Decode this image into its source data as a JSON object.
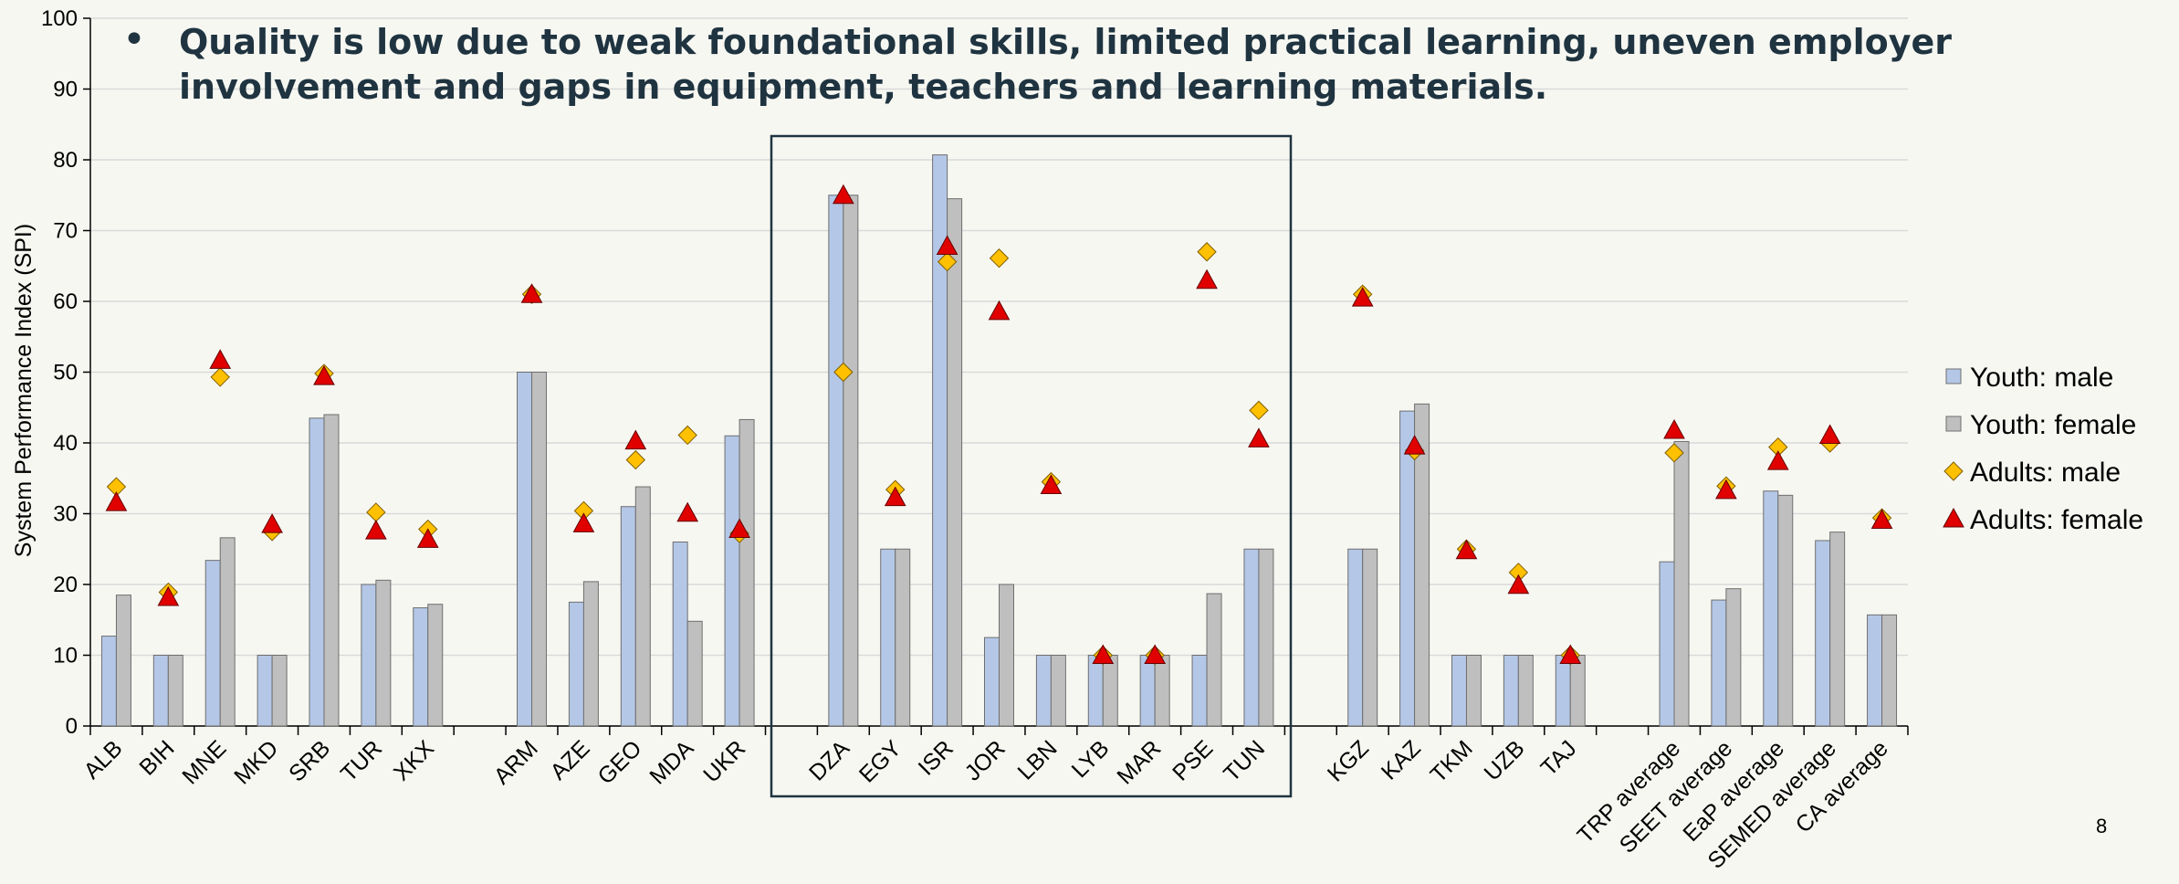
{
  "chart_data": {
    "type": "bar",
    "title": "Quality is low due to weak foundational skills, limited practical learning, uneven employer involvement and gaps in equipment, teachers and learning materials.",
    "y_label": "System Performance Index (SPI)",
    "page_number": "8",
    "categories": [
      "ALB",
      "BIH",
      "MNE",
      "MKD",
      "SRB",
      "TUR",
      "XKX",
      null,
      "ARM",
      "AZE",
      "GEO",
      "MDA",
      "UKR",
      null,
      "DZA",
      "EGY",
      "ISR",
      "JOR",
      "LBN",
      "LYB",
      "MAR",
      "PSE",
      "TUN",
      null,
      "KGZ",
      "KAZ",
      "TKM",
      "UZB",
      "TAJ",
      null,
      "TRP average",
      "SEET average",
      "EaP average",
      "SEMED average",
      "CA average"
    ],
    "series": [
      {
        "name": "Youth: male",
        "color": "#b4c7e7",
        "marker": "bar",
        "values": [
          12.7,
          10,
          23.4,
          10,
          43.5,
          20,
          16.7,
          null,
          50,
          17.5,
          31,
          26,
          41,
          null,
          75,
          25,
          80.7,
          12.5,
          10,
          10,
          10,
          10,
          25,
          null,
          25,
          44.5,
          10,
          10,
          10,
          null,
          23.2,
          17.8,
          33.2,
          26.2,
          15.7
        ]
      },
      {
        "name": "Youth: female",
        "color": "#bfbfbf",
        "marker": "bar",
        "values": [
          18.5,
          10,
          26.6,
          10,
          44,
          20.6,
          17.2,
          null,
          50,
          20.4,
          33.8,
          14.8,
          43.3,
          null,
          75,
          25,
          74.5,
          20,
          10,
          10,
          10,
          18.7,
          25,
          null,
          25,
          45.5,
          10,
          10,
          10,
          null,
          40.2,
          19.4,
          32.6,
          27.4,
          15.7
        ]
      },
      {
        "name": "Adults: male",
        "color": "#ffc000",
        "marker": "diamond",
        "values": [
          33.8,
          18.9,
          49.3,
          27.5,
          49.8,
          30.2,
          27.8,
          null,
          61,
          30.4,
          37.6,
          41.1,
          27.2,
          null,
          50,
          33.4,
          65.6,
          66.1,
          34.5,
          10,
          10,
          67,
          44.6,
          null,
          61,
          38.9,
          25,
          21.7,
          10,
          null,
          38.6,
          33.9,
          39.4,
          40,
          29.4
        ]
      },
      {
        "name": "Adults: female",
        "color": "#e00000",
        "marker": "triangle",
        "values": [
          31.6,
          18.2,
          51.7,
          28.5,
          49.4,
          27.6,
          26.4,
          null,
          61,
          28.6,
          40.3,
          30.1,
          27.8,
          null,
          75,
          32.3,
          67.8,
          58.6,
          34,
          10,
          10,
          63,
          40.6,
          null,
          60.5,
          39.6,
          24.8,
          19.9,
          10,
          null,
          41.8,
          33.3,
          37.4,
          41.1,
          29.1
        ]
      }
    ],
    "ylim": [
      0,
      100
    ],
    "yticks": [
      0,
      10,
      20,
      30,
      40,
      50,
      60,
      70,
      80,
      90,
      100
    ],
    "grid": true,
    "legend": "right"
  }
}
